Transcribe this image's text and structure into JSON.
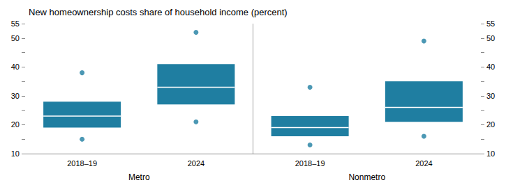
{
  "chart_data": {
    "type": "box",
    "title": "New homeownership costs share of household income (percent)",
    "categories": [
      "2018–19",
      "2024",
      "2018–19",
      "2024"
    ],
    "groups": [
      "Metro",
      "Metro",
      "Nonmetro",
      "Nonmetro"
    ],
    "q1": [
      19,
      27,
      16,
      21
    ],
    "median": [
      23,
      33,
      19,
      26
    ],
    "q3": [
      28,
      41,
      23,
      35
    ],
    "outliers": [
      [
        15,
        38
      ],
      [
        21,
        52
      ],
      [
        13,
        33
      ],
      [
        16,
        49
      ]
    ],
    "color": "#1f7ea1",
    "ylim": [
      10,
      55
    ],
    "yticks": [
      10,
      {
        "value": 15,
        "label": ""
      },
      20,
      {
        "value": 25,
        "label": ""
      },
      30,
      {
        "value": 35,
        "label": ""
      },
      40,
      {
        "value": 45,
        "label": ""
      },
      50,
      55
    ],
    "y2lim": [
      10,
      55
    ],
    "y2ticks": [
      10,
      {
        "value": 15,
        "label": ""
      },
      20,
      {
        "value": 25,
        "label": ""
      },
      30,
      {
        "value": 35,
        "label": ""
      },
      40,
      {
        "value": 45,
        "label": ""
      },
      50,
      55
    ],
    "grid": false
  }
}
